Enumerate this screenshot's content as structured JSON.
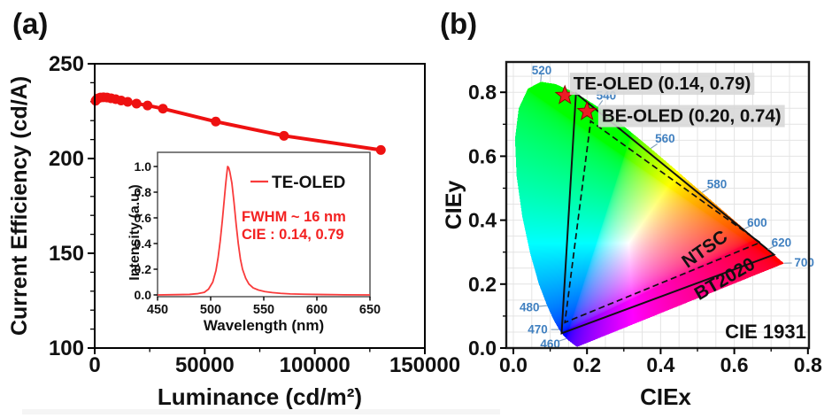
{
  "figure": {
    "panel_a_label": "(a)",
    "panel_b_label": "(b)"
  },
  "colors": {
    "curve_red": "#ee1111",
    "spectrum_red": "#f93b3b",
    "annotation_red": "#f32222",
    "wavelength_blue": "#4080c0",
    "star_red": "#ec1c24",
    "star_edge": "#8b0000",
    "grid_gray": "#e4e4e4",
    "annotation_bg": "#d7d7d7",
    "axis_black": "#111111"
  },
  "chart_data": [
    {
      "id": "efficiency",
      "type": "line",
      "xlabel": "Luminance (cd/m²)",
      "ylabel": "Current Efficiency (cd/A)",
      "xlim": [
        0,
        150000
      ],
      "ylim": [
        100,
        250
      ],
      "xticks": [
        {
          "v": 0,
          "label": "0"
        },
        {
          "v": 50000,
          "label": "50000"
        },
        {
          "v": 100000,
          "label": "100000"
        },
        {
          "v": 150000,
          "label": "150000"
        }
      ],
      "yticks": [
        {
          "v": 100,
          "label": "100"
        },
        {
          "v": 150,
          "label": "150"
        },
        {
          "v": 200,
          "label": "200"
        },
        {
          "v": 250,
          "label": "250"
        }
      ],
      "x_minor": [
        25000,
        75000,
        125000
      ],
      "y_minor_step": 10,
      "grid": false,
      "series": [
        {
          "name": "TE-OLED",
          "x": [
            400,
            900,
            1600,
            2600,
            4000,
            5600,
            7400,
            9500,
            12000,
            15000,
            19000,
            24000,
            31000,
            55000,
            86000,
            130000
          ],
          "y": [
            230.5,
            231.2,
            231.8,
            232.2,
            232.3,
            232.2,
            231.8,
            231.3,
            230.6,
            229.9,
            229.0,
            228.0,
            226.3,
            219.5,
            212.0,
            204.5
          ]
        }
      ]
    },
    {
      "id": "spectrum_inset",
      "type": "line",
      "xlabel": "Wavelength (nm)",
      "ylabel": "Intensity (a.u.)",
      "xlim": [
        450,
        650
      ],
      "ylim": [
        0,
        1.1
      ],
      "xticks": [
        {
          "v": 450,
          "label": "450"
        },
        {
          "v": 500,
          "label": "500"
        },
        {
          "v": 550,
          "label": "550"
        },
        {
          "v": 600,
          "label": "600"
        },
        {
          "v": 650,
          "label": "650"
        }
      ],
      "yticks": [
        {
          "v": 0,
          "label": "0.0"
        },
        {
          "v": 0.2,
          "label": "0.2"
        },
        {
          "v": 0.4,
          "label": "0.4"
        },
        {
          "v": 0.6,
          "label": "0.6"
        },
        {
          "v": 0.8,
          "label": "0.8"
        },
        {
          "v": 1.0,
          "label": "1.0"
        }
      ],
      "legend": "TE-OLED",
      "annotations": [
        "FWHM ~ 16 nm",
        "CIE : 0.14, 0.79"
      ],
      "peak_nm": 516,
      "fwhm_nm": 16,
      "points": [
        [
          450,
          0
        ],
        [
          468,
          0.002
        ],
        [
          480,
          0.004
        ],
        [
          488,
          0.01
        ],
        [
          494,
          0.02
        ],
        [
          498,
          0.045
        ],
        [
          502,
          0.1
        ],
        [
          505,
          0.19
        ],
        [
          507,
          0.29
        ],
        [
          509,
          0.42
        ],
        [
          511,
          0.58
        ],
        [
          513,
          0.76
        ],
        [
          514,
          0.85
        ],
        [
          515,
          0.93
        ],
        [
          516,
          1.0
        ],
        [
          517,
          0.99
        ],
        [
          518,
          0.96
        ],
        [
          520,
          0.87
        ],
        [
          522,
          0.72
        ],
        [
          524,
          0.55
        ],
        [
          526,
          0.4
        ],
        [
          528,
          0.28
        ],
        [
          530,
          0.2
        ],
        [
          533,
          0.13
        ],
        [
          536,
          0.085
        ],
        [
          540,
          0.055
        ],
        [
          545,
          0.038
        ],
        [
          551,
          0.026
        ],
        [
          558,
          0.018
        ],
        [
          566,
          0.012
        ],
        [
          575,
          0.008
        ],
        [
          588,
          0.005
        ],
        [
          605,
          0.003
        ],
        [
          625,
          0.001
        ],
        [
          650,
          0
        ]
      ]
    },
    {
      "id": "cie1931",
      "type": "scatter",
      "xlabel": "CIEx",
      "ylabel": "CIEy",
      "xlim": [
        0,
        0.8
      ],
      "ylim": [
        0,
        0.9
      ],
      "ticks": [
        {
          "v": 0,
          "label": "0.0"
        },
        {
          "v": 0.2,
          "label": "0.2"
        },
        {
          "v": 0.4,
          "label": "0.4"
        },
        {
          "v": 0.6,
          "label": "0.6"
        },
        {
          "v": 0.8,
          "label": "0.8"
        }
      ],
      "minor_ticks": [
        0.1,
        0.3,
        0.5,
        0.7
      ],
      "grid_step": 0.05,
      "corner_label": "CIE 1931",
      "points": [
        {
          "name": "TE-OLED",
          "label": "TE-OLED (0.14, 0.79)",
          "x": 0.14,
          "y": 0.79,
          "text_x": 0.163,
          "text_y": 0.828
        },
        {
          "name": "BE-OLED",
          "label": "BE-OLED (0.20, 0.74)",
          "x": 0.2,
          "y": 0.74,
          "text_x": 0.24,
          "text_y": 0.727
        }
      ],
      "gamut_triangles": [
        {
          "name": "NTSC",
          "line": "dashed",
          "vertices": [
            [
              0.67,
              0.33
            ],
            [
              0.21,
              0.71
            ],
            [
              0.14,
              0.08
            ]
          ],
          "label_x": 0.529,
          "label_y": 0.294,
          "label_rot": -35
        },
        {
          "name": "BT2020",
          "line": "solid",
          "vertices": [
            [
              0.708,
              0.292
            ],
            [
              0.17,
              0.797
            ],
            [
              0.131,
              0.046
            ]
          ],
          "label_x": 0.582,
          "label_y": 0.2,
          "label_rot": -30
        }
      ],
      "wavelength_ticks": [
        {
          "nm": "460",
          "lx": 0.144,
          "ly": 0.0297,
          "tx": 0.1,
          "ty": 0.012
        },
        {
          "nm": "470",
          "lx": 0.1241,
          "ly": 0.0578,
          "tx": 0.066,
          "ty": 0.058
        },
        {
          "nm": "480",
          "lx": 0.0913,
          "ly": 0.1327,
          "tx": 0.044,
          "ty": 0.128
        },
        {
          "nm": "520",
          "lx": 0.0743,
          "ly": 0.8338,
          "tx": 0.077,
          "ty": 0.868
        },
        {
          "nm": "540",
          "lx": 0.2296,
          "ly": 0.7543,
          "tx": 0.252,
          "ty": 0.79
        },
        {
          "nm": "560",
          "lx": 0.3731,
          "ly": 0.6245,
          "tx": 0.412,
          "ty": 0.655
        },
        {
          "nm": "580",
          "lx": 0.5125,
          "ly": 0.4866,
          "tx": 0.553,
          "ty": 0.512
        },
        {
          "nm": "600",
          "lx": 0.627,
          "ly": 0.3725,
          "tx": 0.662,
          "ty": 0.392
        },
        {
          "nm": "620",
          "lx": 0.6915,
          "ly": 0.3083,
          "tx": 0.728,
          "ty": 0.33
        },
        {
          "nm": "700",
          "lx": 0.7347,
          "ly": 0.2653,
          "tx": 0.79,
          "ty": 0.267
        }
      ],
      "spectral_locus": [
        [
          380,
          0.1741,
          0.005
        ],
        [
          385,
          0.174,
          0.005
        ],
        [
          390,
          0.1738,
          0.0049
        ],
        [
          395,
          0.1736,
          0.0049
        ],
        [
          400,
          0.1733,
          0.0048
        ],
        [
          405,
          0.173,
          0.0048
        ],
        [
          410,
          0.1726,
          0.0048
        ],
        [
          415,
          0.1721,
          0.0048
        ],
        [
          420,
          0.1714,
          0.0051
        ],
        [
          425,
          0.1703,
          0.0058
        ],
        [
          430,
          0.1689,
          0.0069
        ],
        [
          435,
          0.1669,
          0.0086
        ],
        [
          440,
          0.1644,
          0.0109
        ],
        [
          445,
          0.1611,
          0.0138
        ],
        [
          450,
          0.1566,
          0.0177
        ],
        [
          455,
          0.151,
          0.0227
        ],
        [
          460,
          0.144,
          0.0297
        ],
        [
          465,
          0.1355,
          0.0399
        ],
        [
          470,
          0.1241,
          0.0578
        ],
        [
          475,
          0.1096,
          0.0868
        ],
        [
          480,
          0.0913,
          0.1327
        ],
        [
          485,
          0.0687,
          0.2007
        ],
        [
          490,
          0.0454,
          0.295
        ],
        [
          495,
          0.0235,
          0.4127
        ],
        [
          500,
          0.0082,
          0.5384
        ],
        [
          505,
          0.0039,
          0.6548
        ],
        [
          510,
          0.0139,
          0.7502
        ],
        [
          515,
          0.0389,
          0.812
        ],
        [
          520,
          0.0743,
          0.8338
        ],
        [
          525,
          0.1142,
          0.8262
        ],
        [
          530,
          0.1547,
          0.8059
        ],
        [
          535,
          0.1929,
          0.7816
        ],
        [
          540,
          0.2296,
          0.7543
        ],
        [
          545,
          0.2658,
          0.7243
        ],
        [
          550,
          0.3016,
          0.6923
        ],
        [
          555,
          0.3373,
          0.6589
        ],
        [
          560,
          0.3731,
          0.6245
        ],
        [
          565,
          0.4087,
          0.5896
        ],
        [
          570,
          0.4441,
          0.5547
        ],
        [
          575,
          0.4784,
          0.5202
        ],
        [
          580,
          0.5125,
          0.4866
        ],
        [
          585,
          0.5448,
          0.4544
        ],
        [
          590,
          0.5752,
          0.4242
        ],
        [
          595,
          0.6029,
          0.3965
        ],
        [
          600,
          0.627,
          0.3725
        ],
        [
          605,
          0.6482,
          0.3514
        ],
        [
          610,
          0.6658,
          0.334
        ],
        [
          615,
          0.6801,
          0.3197
        ],
        [
          620,
          0.6915,
          0.3083
        ],
        [
          625,
          0.7006,
          0.2993
        ],
        [
          630,
          0.7079,
          0.292
        ],
        [
          635,
          0.714,
          0.2859
        ],
        [
          640,
          0.719,
          0.2809
        ],
        [
          645,
          0.723,
          0.277
        ],
        [
          650,
          0.726,
          0.274
        ],
        [
          700,
          0.7347,
          0.2653
        ]
      ]
    }
  ]
}
